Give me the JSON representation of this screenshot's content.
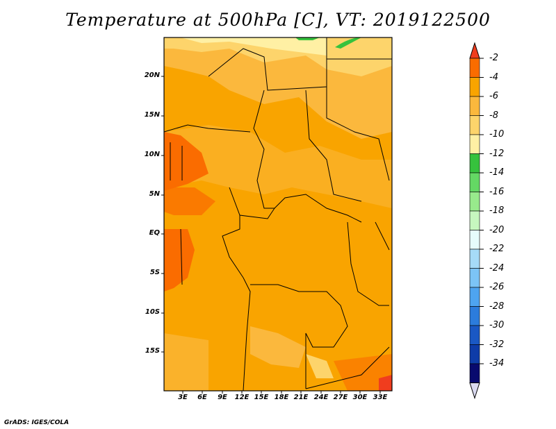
{
  "title": "Temperature at 500hPa [C], VT: 2019122500",
  "credit": "GrADS: IGES/COLA",
  "lat_labels": [
    "20N",
    "15N",
    "10N",
    "5N",
    "EQ",
    "5S",
    "10S",
    "15S"
  ],
  "lon_labels": [
    "3E",
    "6E",
    "9E",
    "12E",
    "15E",
    "18E",
    "21E",
    "24E",
    "27E",
    "30E",
    "33E"
  ],
  "colorbar": {
    "labels": [
      "-2",
      "-4",
      "-6",
      "-8",
      "-10",
      "-12",
      "-14",
      "-16",
      "-18",
      "-20",
      "-22",
      "-24",
      "-26",
      "-28",
      "-30",
      "-32",
      "-34"
    ],
    "colors": [
      "#f03d1e",
      "#fa6c00",
      "#f9a400",
      "#fbb83d",
      "#fdd46b",
      "#fff0a4",
      "#36c23d",
      "#64d864",
      "#98ea8c",
      "#c6f7bf",
      "#e6fcfc",
      "#a6dbf8",
      "#7cc4f6",
      "#4ea4f0",
      "#2c7cdc",
      "#1a58c4",
      "#0e3ca8",
      "#080a6e",
      "#dadaf0"
    ]
  }
}
